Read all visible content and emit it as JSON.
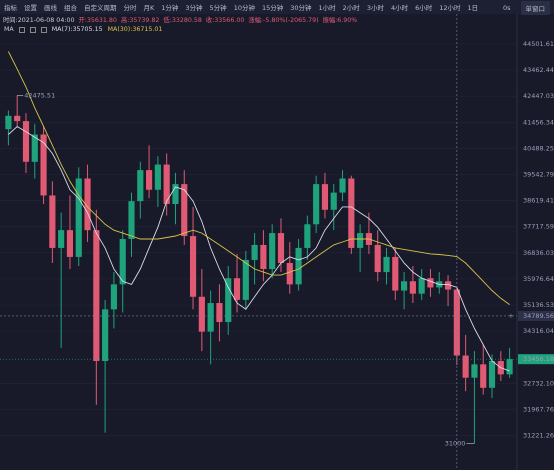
{
  "toolbar": {
    "tools": [
      "指标",
      "设置",
      "画线",
      "组合"
    ],
    "periods": [
      "自定义周期",
      "分时",
      "月K",
      "1分钟",
      "3分钟",
      "5分钟",
      "10分钟",
      "15分钟",
      "30分钟",
      "1小时",
      "2小时",
      "3小时",
      "4小时",
      "6小时",
      "12小时",
      "1日"
    ],
    "countdown": "0s",
    "window": "单窗口"
  },
  "info": [
    "时间:2021-06-08 04:00",
    "开:35631.80",
    "高:35739.82",
    "低:33280.58",
    "收:33566.00",
    "涨幅:-5.80%(-2065.79)",
    "振幅:6.90%"
  ],
  "chart_data": {
    "type": "candlestick",
    "indicator": "MA",
    "log_scale": true,
    "grid": true,
    "up_color": "#1fa37d",
    "down_color": "#e05a73",
    "open": [
      41200,
      41700,
      41500,
      40000,
      41000,
      38800,
      37000,
      37600,
      36700,
      39400,
      37600,
      33400,
      35000,
      35800,
      37300,
      38600,
      39700,
      39000,
      39900,
      38500,
      39200,
      37400,
      35400,
      34300,
      35200,
      34600,
      36000,
      35300,
      36600,
      37100,
      36300,
      37500,
      36500,
      35800,
      37000,
      37800,
      39200,
      38300,
      38900,
      39400,
      37000,
      37500,
      37100,
      36200,
      36700,
      35600,
      35900,
      35500,
      36000,
      35700,
      35900,
      35631.8,
      33566,
      32900,
      33300,
      32600,
      33400,
      33000
    ],
    "high": [
      41900,
      42475.51,
      41800,
      41400,
      41300,
      39300,
      38200,
      38800,
      39800,
      39900,
      38300,
      35300,
      36200,
      37600,
      38900,
      40000,
      40600,
      40200,
      40300,
      39600,
      39700,
      38400,
      36300,
      35600,
      35800,
      36400,
      36800,
      36900,
      37500,
      37600,
      37800,
      38000,
      37200,
      37300,
      38100,
      39500,
      39600,
      39200,
      39700,
      39500,
      37800,
      38200,
      37600,
      37000,
      37000,
      36200,
      36400,
      36300,
      36300,
      36200,
      36100,
      35739.82,
      34200,
      33700,
      33900,
      33600,
      33700,
      33800
    ],
    "low": [
      40600,
      41300,
      39600,
      39400,
      38500,
      36500,
      33800,
      36300,
      36400,
      37200,
      32100,
      31300,
      34400,
      34900,
      36700,
      38000,
      38700,
      38400,
      38100,
      37800,
      37100,
      35000,
      33700,
      33300,
      34000,
      34200,
      34900,
      35000,
      35800,
      35900,
      36000,
      36200,
      35500,
      35600,
      36600,
      37500,
      38000,
      37600,
      38600,
      36800,
      36200,
      36800,
      35900,
      35800,
      35300,
      35000,
      35200,
      35300,
      35400,
      35500,
      35100,
      33280.58,
      32500,
      31000,
      32400,
      32300,
      32800,
      32900
    ],
    "close": [
      41700,
      41500,
      40000,
      41000,
      38800,
      37000,
      37600,
      36700,
      39400,
      37600,
      33400,
      35000,
      35800,
      37300,
      38600,
      39700,
      39000,
      39900,
      38500,
      39200,
      37400,
      35400,
      34300,
      35200,
      34600,
      36000,
      35300,
      36600,
      37100,
      36300,
      37500,
      36500,
      35800,
      37000,
      37800,
      39200,
      38300,
      38900,
      39400,
      37000,
      37500,
      37100,
      36200,
      36700,
      35600,
      35900,
      35500,
      36000,
      35700,
      35900,
      35631.8,
      33566,
      32900,
      33300,
      32600,
      33400,
      33000,
      33456.18
    ],
    "series": [
      {
        "name": "MA(7):35705.15",
        "color": "#d9dbe8",
        "values": [
          41000,
          41300,
          41100,
          40900,
          40700,
          40300,
          39700,
          39000,
          38700,
          38200,
          37500,
          37000,
          36300,
          35900,
          35800,
          36300,
          37000,
          37700,
          38600,
          39100,
          39000,
          38600,
          37900,
          37000,
          36300,
          35700,
          35200,
          35000,
          35400,
          35800,
          36100,
          36500,
          36700,
          36600,
          36700,
          37000,
          37600,
          38000,
          38400,
          38400,
          38200,
          38000,
          37700,
          37300,
          36900,
          36500,
          36200,
          36000,
          35900,
          35800,
          35800,
          35705.15,
          35000,
          34400,
          33900,
          33400,
          33200,
          33100
        ]
      },
      {
        "name": "MA(30):36715.01",
        "color": "#d8c44a",
        "values": [
          44200,
          43500,
          42800,
          42000,
          41300,
          40600,
          39900,
          39300,
          38800,
          38400,
          38100,
          37800,
          37600,
          37500,
          37400,
          37300,
          37300,
          37300,
          37350,
          37400,
          37500,
          37600,
          37500,
          37300,
          37100,
          36900,
          36700,
          36500,
          36300,
          36200,
          36100,
          36100,
          36200,
          36300,
          36500,
          36700,
          36900,
          37100,
          37200,
          37300,
          37300,
          37300,
          37200,
          37100,
          37000,
          36950,
          36900,
          36850,
          36800,
          36780,
          36750,
          36715.01,
          36500,
          36200,
          35900,
          35600,
          35350,
          35150
        ]
      }
    ],
    "ylim": [
      30400,
      45560
    ],
    "yticks": [
      44501.61,
      43462.44,
      42447.03,
      41456.34,
      40488.25,
      39542.79,
      38619.41,
      37717.59,
      36836.03,
      35976.64,
      35136.53,
      34316.04,
      {
        "value": 32732.1,
        "label": "32732.10"
      },
      31967.76,
      31221.26
    ],
    "high_label": 42475.51,
    "low_label": 31000,
    "last_price": 33456.18,
    "crosshair_price": 34789.56,
    "crosshair_mark": "+"
  }
}
